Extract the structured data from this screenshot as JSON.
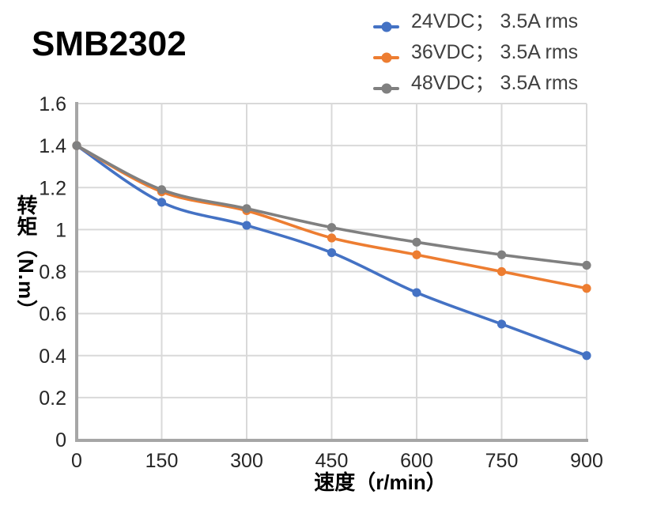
{
  "title": "SMB2302",
  "chart_data": {
    "type": "line",
    "title": "SMB2302",
    "x": [
      0,
      150,
      300,
      450,
      600,
      750,
      900
    ],
    "series": [
      {
        "name": "24VDC； 3.5A rms",
        "color": "#4472C4",
        "values": [
          1.4,
          1.13,
          1.02,
          0.89,
          0.7,
          0.55,
          0.4
        ]
      },
      {
        "name": "36VDC； 3.5A rms",
        "color": "#ED7D31",
        "values": [
          1.4,
          1.18,
          1.09,
          0.96,
          0.88,
          0.8,
          0.72
        ]
      },
      {
        "name": "48VDC； 3.5A rms",
        "color": "#808080",
        "values": [
          1.4,
          1.19,
          1.1,
          1.01,
          0.94,
          0.88,
          0.83
        ]
      }
    ],
    "xlabel": "速度（r/min）",
    "ylabel": "转矩（N.m）",
    "xlim": [
      0,
      900
    ],
    "ylim": [
      0,
      1.6
    ],
    "xtick_step": 150,
    "ytick_step": 0.2,
    "grid": true,
    "smooth": true,
    "marker": "circle",
    "legend_position": "top-right",
    "colors": {
      "axis": "#A6A6A6",
      "gridline": "#D9D9D9",
      "tick_label": "#262626",
      "legend_text": "#404040",
      "title_text": "#000000"
    }
  }
}
